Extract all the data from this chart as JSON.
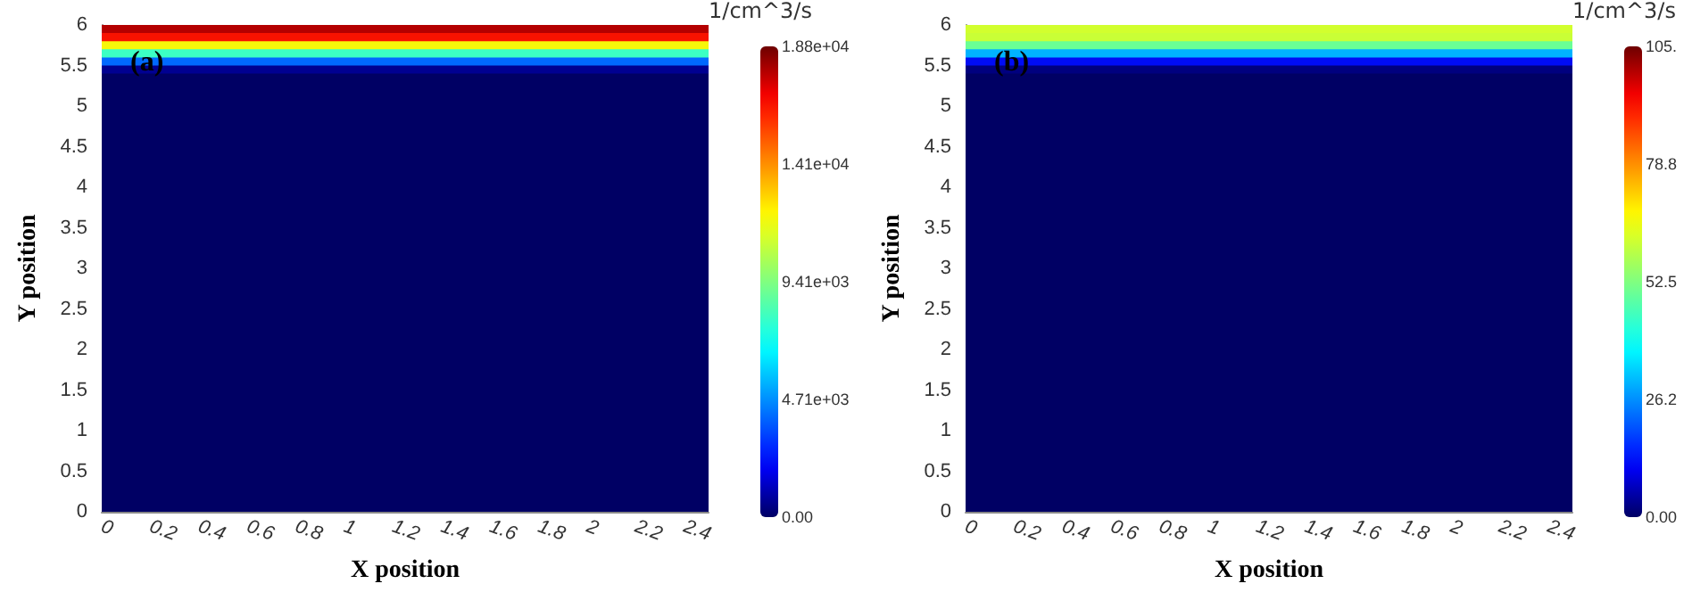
{
  "chart_data": [
    {
      "type": "heatmap",
      "title": "(a)",
      "xlabel": "X position",
      "ylabel": "Y position",
      "clabel": "1/cm^3/s",
      "xlim": [
        0,
        2.5
      ],
      "ylim": [
        0,
        6
      ],
      "xticks": [
        0,
        0.2,
        0.4,
        0.6,
        0.8,
        1,
        1.2,
        1.4,
        1.6,
        1.8,
        2,
        2.2,
        2.4
      ],
      "yticks": [
        0,
        0.5,
        1,
        1.5,
        2,
        2.5,
        3,
        3.5,
        4,
        4.5,
        5,
        5.5,
        6
      ],
      "clim": [
        0,
        18800
      ],
      "cticks": [
        {
          "value": 0,
          "label": "0.00"
        },
        {
          "value": 4710,
          "label": "4.71e+03"
        },
        {
          "value": 9410,
          "label": "9.41e+03"
        },
        {
          "value": 14100,
          "label": "1.41e+04"
        },
        {
          "value": 18800,
          "label": "1.88e+04"
        }
      ],
      "cells": [
        [
          17800
        ],
        [
          16500
        ],
        [
          12000
        ],
        [
          8000
        ],
        [
          4000
        ],
        [
          600
        ],
        [
          0
        ],
        [
          0
        ],
        [
          0
        ],
        [
          0
        ],
        [
          0
        ],
        [
          0
        ],
        [
          0
        ],
        [
          0
        ],
        [
          0
        ],
        [
          0
        ],
        [
          0
        ],
        [
          0
        ],
        [
          0
        ],
        [
          0
        ],
        [
          0
        ],
        [
          0
        ],
        [
          0
        ],
        [
          0
        ],
        [
          0
        ],
        [
          0
        ],
        [
          0
        ],
        [
          0
        ],
        [
          0
        ],
        [
          0
        ],
        [
          0
        ],
        [
          0
        ],
        [
          0
        ],
        [
          0
        ],
        [
          0
        ],
        [
          0
        ],
        [
          0
        ],
        [
          0
        ],
        [
          0
        ],
        [
          0
        ],
        [
          0
        ],
        [
          0
        ],
        [
          0
        ],
        [
          0
        ],
        [
          0
        ],
        [
          0
        ],
        [
          0
        ],
        [
          0
        ],
        [
          0
        ],
        [
          0
        ],
        [
          0
        ],
        [
          0
        ],
        [
          0
        ],
        [
          0
        ],
        [
          0
        ],
        [
          0
        ],
        [
          0
        ],
        [
          0
        ],
        [
          0
        ],
        [
          0
        ]
      ]
    },
    {
      "type": "heatmap",
      "title": "(b)",
      "xlabel": "X position",
      "ylabel": "Y position",
      "clabel": "1/cm^3/s",
      "xlim": [
        0,
        2.5
      ],
      "ylim": [
        0,
        6
      ],
      "xticks": [
        0,
        0.2,
        0.4,
        0.6,
        0.8,
        1,
        1.2,
        1.4,
        1.6,
        1.8,
        2,
        2.2,
        2.4
      ],
      "yticks": [
        0,
        0.5,
        1,
        1.5,
        2,
        2.5,
        3,
        3.5,
        4,
        4.5,
        5,
        5.5,
        6
      ],
      "clim": [
        0,
        105
      ],
      "cticks": [
        {
          "value": 0,
          "label": "0.00"
        },
        26.2,
        52.5,
        78.8,
        {
          "value": 105,
          "label": "105."
        }
      ],
      "cells": [
        [
          62
        ],
        [
          61
        ],
        [
          50
        ],
        [
          30
        ],
        [
          12
        ],
        [
          2
        ],
        [
          0
        ],
        [
          0
        ],
        [
          0
        ],
        [
          0
        ],
        [
          0
        ],
        [
          0
        ],
        [
          0
        ],
        [
          0
        ],
        [
          0
        ],
        [
          0
        ],
        [
          0
        ],
        [
          0
        ],
        [
          0
        ],
        [
          0
        ],
        [
          0
        ],
        [
          0
        ],
        [
          0
        ],
        [
          0
        ],
        [
          0
        ],
        [
          0
        ],
        [
          0
        ],
        [
          0
        ],
        [
          0
        ],
        [
          0
        ],
        [
          0
        ],
        [
          0
        ],
        [
          0
        ],
        [
          0
        ],
        [
          0
        ],
        [
          0
        ],
        [
          0
        ],
        [
          0
        ],
        [
          0
        ],
        [
          0
        ],
        [
          0
        ],
        [
          0
        ],
        [
          0
        ],
        [
          0
        ],
        [
          0
        ],
        [
          0
        ],
        [
          0
        ],
        [
          0
        ],
        [
          0
        ],
        [
          0
        ],
        [
          0
        ],
        [
          0
        ],
        [
          0
        ],
        [
          0
        ],
        [
          0
        ],
        [
          0
        ],
        [
          0
        ],
        [
          0
        ],
        [
          0
        ],
        [
          0
        ]
      ]
    }
  ]
}
